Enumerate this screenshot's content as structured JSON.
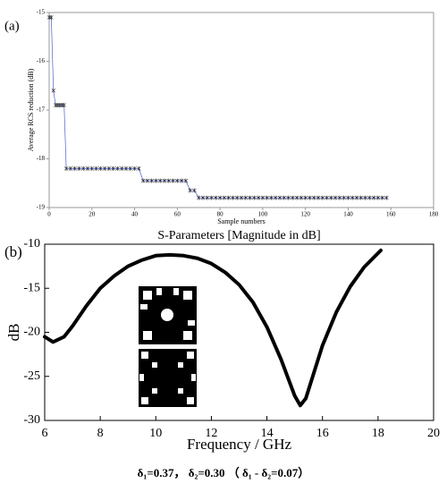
{
  "chart_data": [
    {
      "type": "line",
      "panel_label": "(a)",
      "xlabel": "Sample numbers",
      "ylabel": "Average RCS reduction (dB)",
      "color": "#4a5fd0",
      "marker_color": "#222222",
      "x": [
        0,
        1,
        2,
        3,
        4,
        5,
        6,
        7,
        8,
        10,
        12,
        14,
        16,
        18,
        20,
        22,
        24,
        26,
        28,
        30,
        32,
        34,
        36,
        38,
        40,
        42,
        44,
        46,
        48,
        50,
        52,
        54,
        56,
        58,
        60,
        62,
        64,
        66,
        68,
        70,
        72,
        74,
        76,
        78,
        80,
        82,
        84,
        86,
        88,
        90,
        92,
        94,
        96,
        98,
        100,
        102,
        104,
        106,
        108,
        110,
        112,
        114,
        116,
        118,
        120,
        122,
        124,
        126,
        128,
        130,
        132,
        134,
        136,
        138,
        140,
        142,
        144,
        146,
        148,
        150,
        152,
        154,
        156,
        158
      ],
      "values": [
        -15.1,
        -15.1,
        -16.6,
        -16.9,
        -16.9,
        -16.9,
        -16.9,
        -16.9,
        -18.2,
        -18.2,
        -18.2,
        -18.2,
        -18.2,
        -18.2,
        -18.2,
        -18.2,
        -18.2,
        -18.2,
        -18.2,
        -18.2,
        -18.2,
        -18.2,
        -18.2,
        -18.2,
        -18.2,
        -18.2,
        -18.45,
        -18.45,
        -18.45,
        -18.45,
        -18.45,
        -18.45,
        -18.45,
        -18.45,
        -18.45,
        -18.45,
        -18.45,
        -18.65,
        -18.65,
        -18.8,
        -18.8,
        -18.8,
        -18.8,
        -18.8,
        -18.8,
        -18.8,
        -18.8,
        -18.8,
        -18.8,
        -18.8,
        -18.8,
        -18.8,
        -18.8,
        -18.8,
        -18.8,
        -18.8,
        -18.8,
        -18.8,
        -18.8,
        -18.8,
        -18.8,
        -18.8,
        -18.8,
        -18.8,
        -18.8,
        -18.8,
        -18.8,
        -18.8,
        -18.8,
        -18.8,
        -18.8,
        -18.8,
        -18.8,
        -18.8,
        -18.8,
        -18.8,
        -18.8,
        -18.8,
        -18.8,
        -18.8,
        -18.8,
        -18.8,
        -18.8,
        -18.8
      ],
      "xlim": [
        0,
        180
      ],
      "xticks": [
        0,
        20,
        40,
        60,
        80,
        100,
        120,
        140,
        160,
        180
      ],
      "ylim": [
        -19,
        -15
      ],
      "yticks": [
        -15,
        -16,
        -17,
        -18,
        -19
      ]
    },
    {
      "type": "line",
      "panel_label": "(b)",
      "title": "S-Parameters [Magnitude in dB]",
      "xlabel": "Frequency / GHz",
      "ylabel": "dB",
      "color": "#000000",
      "x": [
        6.0,
        6.3,
        6.7,
        7,
        7.5,
        8,
        8.5,
        9,
        9.5,
        10,
        10.5,
        11,
        11.5,
        12,
        12.5,
        13,
        13.5,
        14,
        14.5,
        15,
        15.2,
        15.4,
        15.7,
        16,
        16.5,
        17,
        17.5,
        18.1
      ],
      "values": [
        -20.5,
        -21.1,
        -20.5,
        -19.3,
        -17,
        -15,
        -13.6,
        -12.5,
        -11.8,
        -11.3,
        -11.2,
        -11.3,
        -11.6,
        -12.2,
        -13.2,
        -14.6,
        -16.6,
        -19.4,
        -23,
        -27.2,
        -28.3,
        -27.5,
        -24.5,
        -21.5,
        -17.7,
        -14.8,
        -12.6,
        -10.7
      ],
      "xlim": [
        6,
        20
      ],
      "xticks": [
        6,
        8,
        10,
        12,
        14,
        16,
        18,
        20
      ],
      "ylim": [
        -30,
        -10
      ],
      "yticks": [
        -10,
        -15,
        -20,
        -25,
        -30
      ]
    }
  ],
  "caption": "δ₁=0.37，  δ₂=0.30 （ δ₁ - δ₂=0.07）"
}
